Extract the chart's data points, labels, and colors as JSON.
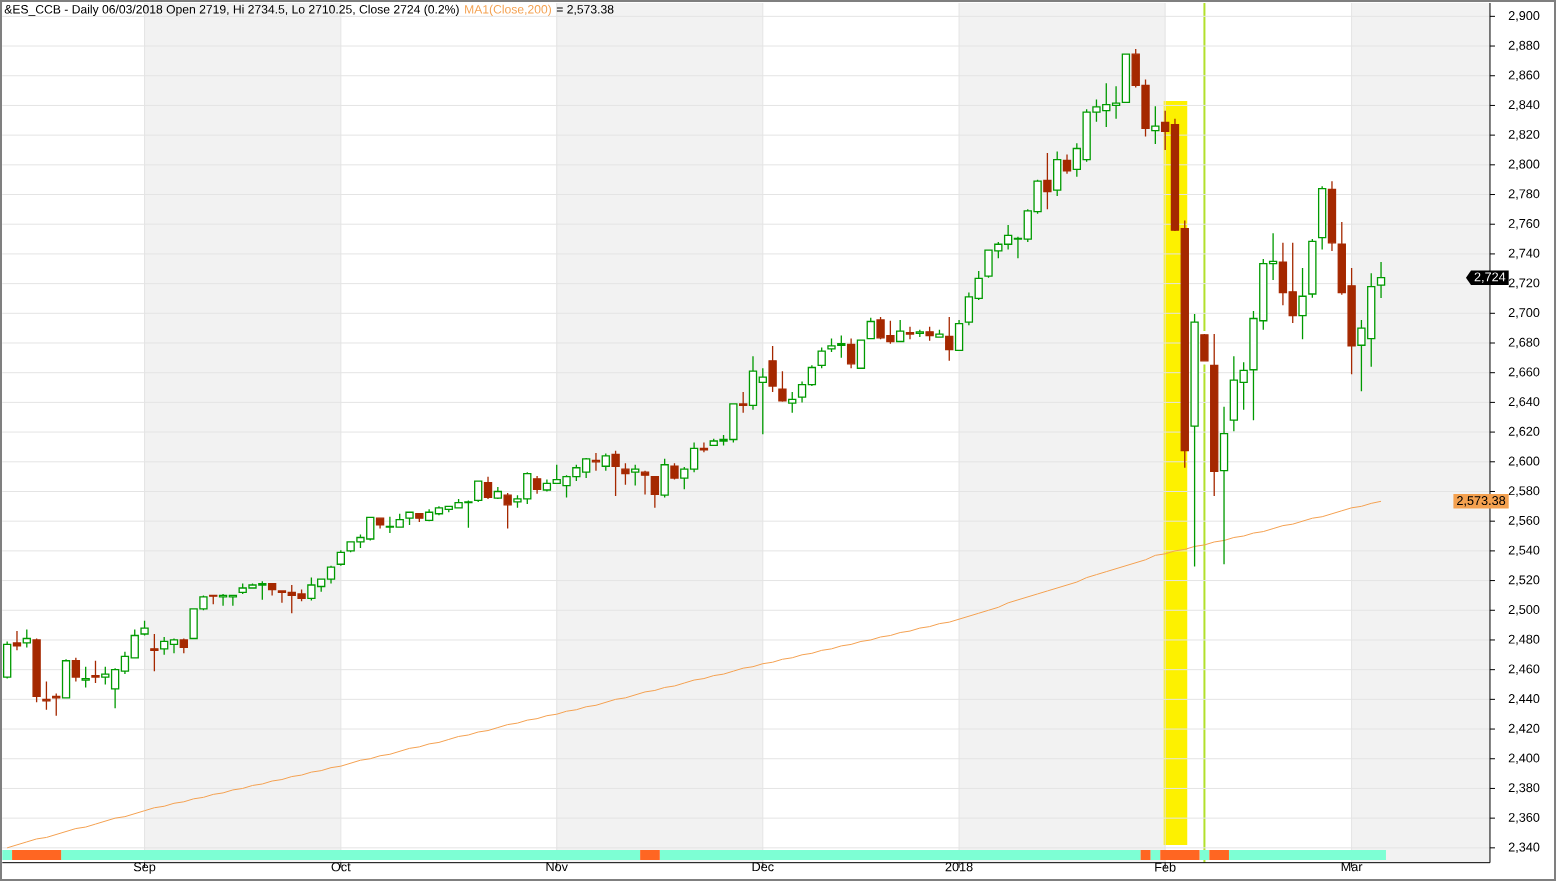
{
  "chart_data": {
    "type": "candlestick",
    "title": "&ES_CCB - Daily 06/03/2018 Open 2719, Hi 2734.5, Lo 2710.25, Close 2724 (0.2%)",
    "categories": [
      null,
      null,
      null,
      null,
      null,
      null,
      null,
      null,
      null,
      null,
      null,
      null,
      null,
      null,
      "Sep",
      null,
      null,
      null,
      null,
      null,
      null,
      null,
      null,
      null,
      null,
      null,
      null,
      null,
      null,
      null,
      null,
      null,
      null,
      null,
      "Oct",
      null,
      null,
      null,
      null,
      null,
      null,
      null,
      null,
      null,
      null,
      null,
      null,
      null,
      null,
      null,
      null,
      null,
      null,
      null,
      null,
      null,
      "Nov",
      null,
      null,
      null,
      null,
      null,
      null,
      null,
      null,
      null,
      null,
      null,
      null,
      null,
      null,
      null,
      null,
      null,
      null,
      null,
      null,
      "Dec",
      null,
      null,
      null,
      null,
      null,
      null,
      null,
      null,
      null,
      null,
      null,
      null,
      null,
      null,
      null,
      null,
      null,
      null,
      null,
      "2018",
      null,
      null,
      null,
      null,
      null,
      null,
      null,
      null,
      null,
      null,
      null,
      null,
      null,
      null,
      null,
      null,
      null,
      null,
      null,
      null,
      "Feb",
      null,
      null,
      null,
      null,
      null,
      null,
      null,
      null,
      null,
      null,
      null,
      null,
      null,
      null,
      null,
      null,
      null,
      null,
      "Mar",
      null,
      null,
      null
    ],
    "series": [
      {
        "type": "candlestick",
        "ohlc": [
          [
            2455,
            2479,
            2454,
            2477
          ],
          [
            2478,
            2486,
            2473,
            2476
          ],
          [
            2478,
            2487,
            2475,
            2481
          ],
          [
            2480,
            2481,
            2438,
            2442
          ],
          [
            2440,
            2452,
            2433,
            2439
          ],
          [
            2442,
            2444,
            2429,
            2441
          ],
          [
            2441,
            2467,
            2441,
            2466
          ],
          [
            2466,
            2468,
            2452,
            2455
          ],
          [
            2453,
            2462,
            2448,
            2454
          ],
          [
            2456,
            2466,
            2451,
            2455
          ],
          [
            2455,
            2462,
            2450,
            2457
          ],
          [
            2447,
            2461,
            2434,
            2460
          ],
          [
            2459,
            2472,
            2457,
            2469
          ],
          [
            2468,
            2487,
            2468,
            2483
          ],
          [
            2484,
            2493,
            2483,
            2488
          ],
          [
            2474,
            2484,
            2459,
            2473
          ],
          [
            2474,
            2482,
            2470,
            2479
          ],
          [
            2477,
            2481,
            2471,
            2480
          ],
          [
            2480,
            2481,
            2471,
            2475
          ],
          [
            2481,
            2501,
            2481,
            2501
          ],
          [
            2501,
            2510,
            2500,
            2509
          ],
          [
            2510,
            2510.5,
            2504,
            2509.5
          ],
          [
            2509,
            2511,
            2503,
            2510
          ],
          [
            2509,
            2510,
            2503,
            2510
          ],
          [
            2512,
            2518,
            2511,
            2515
          ],
          [
            2515,
            2518,
            2514.5,
            2517
          ],
          [
            2517,
            2519.5,
            2507,
            2518
          ],
          [
            2518,
            2518,
            2510,
            2514
          ],
          [
            2513,
            2513.5,
            2505,
            2512
          ],
          [
            2512,
            2517,
            2498,
            2510
          ],
          [
            2511,
            2514,
            2506,
            2508
          ],
          [
            2508,
            2522,
            2506.5,
            2517
          ],
          [
            2516,
            2521,
            2512.5,
            2521
          ],
          [
            2521,
            2530,
            2518,
            2529
          ],
          [
            2531,
            2540.5,
            2530,
            2539
          ],
          [
            2540,
            2546,
            2539,
            2546
          ],
          [
            2546,
            2551,
            2542,
            2549
          ],
          [
            2548,
            2563,
            2547,
            2562.5
          ],
          [
            2562,
            2562,
            2555,
            2557.5
          ],
          [
            2556,
            2563,
            2552,
            2556.5
          ],
          [
            2556,
            2565,
            2555.5,
            2561
          ],
          [
            2562,
            2566,
            2557.5,
            2566
          ],
          [
            2565,
            2565.5,
            2559.5,
            2562
          ],
          [
            2560.5,
            2568,
            2560,
            2566
          ],
          [
            2565,
            2570,
            2564,
            2569
          ],
          [
            2568,
            2570,
            2566,
            2570
          ],
          [
            2569,
            2575,
            2569,
            2572.5
          ],
          [
            2572.5,
            2574,
            2555.5,
            2573
          ],
          [
            2574,
            2587,
            2573,
            2587
          ],
          [
            2586,
            2590,
            2575,
            2576
          ],
          [
            2575.5,
            2583,
            2575,
            2580
          ],
          [
            2577.5,
            2579,
            2555,
            2571
          ],
          [
            2573,
            2577.5,
            2569,
            2575
          ],
          [
            2575,
            2593,
            2571.5,
            2592
          ],
          [
            2588.5,
            2590.5,
            2578.5,
            2581.5
          ],
          [
            2581,
            2588,
            2580,
            2585.5
          ],
          [
            2585.5,
            2598,
            2585,
            2588
          ],
          [
            2584,
            2591,
            2576,
            2590
          ],
          [
            2590,
            2598,
            2587,
            2596
          ],
          [
            2593,
            2602.5,
            2589,
            2602
          ],
          [
            2601,
            2606,
            2594,
            2600
          ],
          [
            2597,
            2605.5,
            2594,
            2604
          ],
          [
            2605,
            2607.5,
            2577,
            2597
          ],
          [
            2595,
            2599,
            2584.5,
            2592
          ],
          [
            2593,
            2598,
            2584,
            2595
          ],
          [
            2593,
            2594,
            2578,
            2591
          ],
          [
            2590,
            2590,
            2569,
            2578
          ],
          [
            2577.5,
            2602,
            2576,
            2598
          ],
          [
            2597,
            2599,
            2588,
            2589
          ],
          [
            2589,
            2596.5,
            2581.5,
            2595
          ],
          [
            2595,
            2613,
            2593,
            2609
          ],
          [
            2609,
            2613,
            2606.5,
            2608
          ],
          [
            2611,
            2615.5,
            2611,
            2614
          ],
          [
            2614,
            2618,
            2611,
            2615
          ],
          [
            2615,
            2639.5,
            2613,
            2639
          ],
          [
            2639,
            2647,
            2633,
            2638
          ],
          [
            2638,
            2671,
            2635,
            2661
          ],
          [
            2653.5,
            2663,
            2618.5,
            2657
          ],
          [
            2668,
            2678,
            2647,
            2651
          ],
          [
            2649,
            2661,
            2640.5,
            2641
          ],
          [
            2639.5,
            2647,
            2633,
            2642
          ],
          [
            2643.5,
            2654,
            2640,
            2652
          ],
          [
            2652,
            2665,
            2651,
            2663.5
          ],
          [
            2665,
            2677,
            2663,
            2674.5
          ],
          [
            2676,
            2683,
            2674,
            2678
          ],
          [
            2678.5,
            2685,
            2670,
            2679.5
          ],
          [
            2679,
            2683,
            2663,
            2666
          ],
          [
            2663,
            2682,
            2663,
            2682
          ],
          [
            2683,
            2697,
            2683,
            2694.5
          ],
          [
            2695.5,
            2697.5,
            2682.5,
            2683.5
          ],
          [
            2685,
            2695,
            2679.5,
            2681
          ],
          [
            2681,
            2695.5,
            2681,
            2688
          ],
          [
            2687,
            2691,
            2682.5,
            2686
          ],
          [
            2686.5,
            2689,
            2684,
            2687.5
          ],
          [
            2687.5,
            2691,
            2681.5,
            2685
          ],
          [
            2684,
            2689,
            2684,
            2686
          ],
          [
            2684.5,
            2697.5,
            2668,
            2675.5
          ],
          [
            2675,
            2695.5,
            2675,
            2693
          ],
          [
            2694,
            2714,
            2692,
            2711
          ],
          [
            2710,
            2728.5,
            2709,
            2723.5
          ],
          [
            2725,
            2742.5,
            2724,
            2742.5
          ],
          [
            2742,
            2748,
            2737,
            2746.5
          ],
          [
            2746.5,
            2759.5,
            2743,
            2752.5
          ],
          [
            2750,
            2751.5,
            2737,
            2750.5
          ],
          [
            2750,
            2770,
            2748,
            2769
          ],
          [
            2768.5,
            2790,
            2767,
            2789
          ],
          [
            2789.5,
            2808,
            2770,
            2782
          ],
          [
            2783,
            2809,
            2779,
            2803.5
          ],
          [
            2803,
            2807,
            2794,
            2796
          ],
          [
            2797,
            2814.5,
            2792,
            2811
          ],
          [
            2803.5,
            2837.5,
            2802,
            2835.5
          ],
          [
            2835.5,
            2844,
            2829,
            2839
          ],
          [
            2836.5,
            2855,
            2825.5,
            2840.5
          ],
          [
            2840,
            2853,
            2831,
            2841.5
          ],
          [
            2842,
            2875,
            2842,
            2874.5
          ],
          [
            2874.5,
            2878,
            2852,
            2853.5
          ],
          [
            2853.5,
            2857.5,
            2819,
            2824.5
          ],
          [
            2823,
            2839.5,
            2814,
            2826
          ],
          [
            2828.5,
            2836.5,
            2810,
            2822.5
          ],
          [
            2827,
            2831,
            2755.5,
            2756
          ],
          [
            2757,
            2762.5,
            2596,
            2607.5
          ],
          [
            2624,
            2699.5,
            2529.5,
            2694
          ],
          [
            2685.5,
            2686,
            2667.5,
            2668
          ],
          [
            2665,
            2686,
            2577,
            2593.5
          ],
          [
            2594,
            2637,
            2531,
            2619
          ],
          [
            2628,
            2671,
            2620.5,
            2655
          ],
          [
            2653.5,
            2667,
            2635,
            2661.5
          ],
          [
            2662,
            2701.5,
            2628,
            2696.5
          ],
          [
            2695,
            2736.5,
            2689,
            2733.5
          ],
          [
            2733.5,
            2754,
            2722.5,
            2735
          ],
          [
            2734.5,
            2747.5,
            2705.5,
            2714
          ],
          [
            2714.5,
            2747.5,
            2693.5,
            2698.5
          ],
          [
            2698.5,
            2730.5,
            2682.5,
            2711.5
          ],
          [
            2713,
            2750,
            2710.5,
            2748.5
          ],
          [
            2751,
            2785.5,
            2743,
            2784
          ],
          [
            2783.5,
            2789,
            2742,
            2747.5
          ],
          [
            2746.5,
            2761.5,
            2712.5,
            2714
          ],
          [
            2718.5,
            2730.5,
            2659,
            2678
          ],
          [
            2678.5,
            2695.5,
            2647.5,
            2690
          ],
          [
            2683,
            2727,
            2664,
            2718
          ],
          [
            2719,
            2734.5,
            2710.25,
            2724
          ]
        ],
        "colors": [
          "#009a00",
          "#a52800",
          "#009a00",
          "#a52800",
          "#a52800",
          "#a52800",
          "#009a00",
          "#a52800",
          "#009a00",
          "#a52800",
          "#009a00",
          "#009a00",
          "#009a00",
          "#009a00",
          "#009a00",
          "#a52800",
          "#009a00",
          "#009a00",
          "#a52800",
          "#009a00",
          "#009a00",
          "#a52800",
          "#009a00",
          "#009a00",
          "#009a00",
          "#009a00",
          "#009a00",
          "#a52800",
          "#a52800",
          "#a52800",
          "#a52800",
          "#009a00",
          "#009a00",
          "#009a00",
          "#009a00",
          "#009a00",
          "#009a00",
          "#009a00",
          "#a52800",
          "#009a00",
          "#009a00",
          "#009a00",
          "#a52800",
          "#009a00",
          "#009a00",
          "#009a00",
          "#009a00",
          "#009a00",
          "#009a00",
          "#a52800",
          "#009a00",
          "#a52800",
          "#009a00",
          "#009a00",
          "#a52800",
          "#009a00",
          "#009a00",
          "#009a00",
          "#009a00",
          "#009a00",
          "#a52800",
          "#009a00",
          "#a52800",
          "#a52800",
          "#009a00",
          "#a52800",
          "#a52800",
          "#009a00",
          "#a52800",
          "#009a00",
          "#009a00",
          "#a52800",
          "#009a00",
          "#009a00",
          "#009a00",
          "#a52800",
          "#009a00",
          "#009a00",
          "#a52800",
          "#a52800",
          "#009a00",
          "#009a00",
          "#009a00",
          "#009a00",
          "#009a00",
          "#009a00",
          "#a52800",
          "#009a00",
          "#009a00",
          "#a52800",
          "#a52800",
          "#009a00",
          "#a52800",
          "#009a00",
          "#a52800",
          "#009a00",
          "#a52800",
          "#009a00",
          "#009a00",
          "#009a00",
          "#009a00",
          "#009a00",
          "#009a00",
          "#009a00",
          "#009a00",
          "#009a00",
          "#a52800",
          "#009a00",
          "#a52800",
          "#009a00",
          "#009a00",
          "#009a00",
          "#009a00",
          "#009a00",
          "#009a00",
          "#a52800",
          "#a52800",
          "#009a00",
          "#a52800",
          "#a52800",
          "#a52800",
          "#009a00",
          "#a52800",
          "#a52800",
          "#009a00",
          "#009a00",
          "#009a00",
          "#009a00",
          "#009a00",
          "#009a00",
          "#a52800",
          "#a52800",
          "#009a00",
          "#009a00",
          "#009a00",
          "#a52800",
          "#a52800",
          "#a52800",
          "#009a00",
          "#009a00",
          "#009a00"
        ]
      },
      {
        "type": "line",
        "name": "MA1(Close,200)",
        "color": "#f4a150",
        "values": [
          2340,
          2342,
          2344,
          2346,
          2347,
          2349,
          2351,
          2353,
          2354,
          2356,
          2358,
          2360,
          2361,
          2363,
          2365,
          2367,
          2368,
          2370,
          2371,
          2373,
          2374,
          2376,
          2377,
          2379,
          2380,
          2382,
          2383,
          2385,
          2386,
          2388,
          2389,
          2391,
          2392,
          2394,
          2395,
          2397,
          2399,
          2400,
          2402,
          2403,
          2405,
          2407,
          2408,
          2410,
          2411,
          2413,
          2415,
          2416,
          2418,
          2419,
          2421,
          2423,
          2424,
          2426,
          2427,
          2429,
          2430,
          2432,
          2433,
          2435,
          2436,
          2438,
          2440,
          2441,
          2443,
          2445,
          2446,
          2448,
          2449,
          2451,
          2453,
          2454,
          2456,
          2457,
          2459,
          2461,
          2462,
          2464,
          2465,
          2467,
          2468,
          2470,
          2471,
          2473,
          2474,
          2476,
          2477,
          2479,
          2480,
          2482,
          2483,
          2485,
          2486,
          2488,
          2489,
          2491,
          2492,
          2494,
          2496,
          2498,
          2500,
          2502,
          2505,
          2507,
          2509,
          2511,
          2513,
          2515,
          2517,
          2519,
          2522,
          2524,
          2526,
          2528,
          2530,
          2532,
          2534,
          2537,
          2538,
          2540,
          2541,
          2543,
          2544,
          2546,
          2547,
          2549,
          2550,
          2552,
          2553,
          2555,
          2557,
          2558,
          2560,
          2562,
          2563,
          2565,
          2567,
          2569,
          2570,
          2572,
          2573.38
        ]
      }
    ],
    "ylim": [
      2330,
      2909
    ],
    "yticks": [
      {
        "value": 2340,
        "label": "2,340"
      },
      {
        "value": 2360,
        "label": "2,360"
      },
      {
        "value": 2380,
        "label": "2,380"
      },
      {
        "value": 2400,
        "label": "2,400"
      },
      {
        "value": 2420,
        "label": "2,420"
      },
      {
        "value": 2440,
        "label": "2,440"
      },
      {
        "value": 2460,
        "label": "2,460"
      },
      {
        "value": 2480,
        "label": "2,480"
      },
      {
        "value": 2500,
        "label": "2,500"
      },
      {
        "value": 2520,
        "label": "2,520"
      },
      {
        "value": 2540,
        "label": "2,540"
      },
      {
        "value": 2560,
        "label": "2,560"
      },
      {
        "value": 2580,
        "label": "2,580"
      },
      {
        "value": 2600,
        "label": "2,600"
      },
      {
        "value": 2620,
        "label": "2,620"
      },
      {
        "value": 2640,
        "label": "2,640"
      },
      {
        "value": 2660,
        "label": "2,660"
      },
      {
        "value": 2680,
        "label": "2,680"
      },
      {
        "value": 2700,
        "label": "2,700"
      },
      {
        "value": 2720,
        "label": "2,720"
      },
      {
        "value": 2740,
        "label": "2,740"
      },
      {
        "value": 2760,
        "label": "2,760"
      },
      {
        "value": 2780,
        "label": "2,780"
      },
      {
        "value": 2800,
        "label": "2,800"
      },
      {
        "value": 2820,
        "label": "2,820"
      },
      {
        "value": 2840,
        "label": "2,840"
      },
      {
        "value": 2860,
        "label": "2,860"
      },
      {
        "value": 2880,
        "label": "2,880"
      },
      {
        "value": 2900,
        "label": "2,900"
      }
    ],
    "grid": true,
    "bands": [
      {
        "axis": "x",
        "from": "Sep",
        "to": "Oct",
        "color": "#f2f2f2"
      },
      {
        "axis": "x",
        "from": "Nov",
        "to": "Dec",
        "color": "#f2f2f2"
      }
    ],
    "annotations": [
      "= 2,573.38",
      "2,724",
      "2,573.38"
    ]
  }
}
